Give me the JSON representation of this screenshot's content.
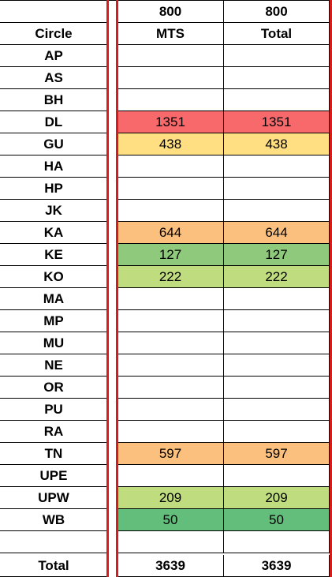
{
  "header": {
    "row1": {
      "label": "",
      "mts": "800",
      "total": "800"
    },
    "row2": {
      "label": "Circle",
      "mts": "MTS",
      "total": "Total"
    }
  },
  "colors": {
    "red": "#f8696b",
    "yellow": "#ffdf82",
    "orange": "#fbc07d",
    "light_green": "#bfdc7f",
    "green": "#8ec97c",
    "dark_green": "#63be7b",
    "border_red": "#d81b1b"
  },
  "rows": [
    {
      "circle": "AP",
      "mts": "",
      "total": "",
      "color": ""
    },
    {
      "circle": "AS",
      "mts": "",
      "total": "",
      "color": ""
    },
    {
      "circle": "BH",
      "mts": "",
      "total": "",
      "color": ""
    },
    {
      "circle": "DL",
      "mts": "1351",
      "total": "1351",
      "color": "#f8696b"
    },
    {
      "circle": "GU",
      "mts": "438",
      "total": "438",
      "color": "#ffdf82"
    },
    {
      "circle": "HA",
      "mts": "",
      "total": "",
      "color": ""
    },
    {
      "circle": "HP",
      "mts": "",
      "total": "",
      "color": ""
    },
    {
      "circle": "JK",
      "mts": "",
      "total": "",
      "color": ""
    },
    {
      "circle": "KA",
      "mts": "644",
      "total": "644",
      "color": "#fbc07d"
    },
    {
      "circle": "KE",
      "mts": "127",
      "total": "127",
      "color": "#8ec97c"
    },
    {
      "circle": "KO",
      "mts": "222",
      "total": "222",
      "color": "#bfdc7f"
    },
    {
      "circle": "MA",
      "mts": "",
      "total": "",
      "color": ""
    },
    {
      "circle": "MP",
      "mts": "",
      "total": "",
      "color": ""
    },
    {
      "circle": "MU",
      "mts": "",
      "total": "",
      "color": ""
    },
    {
      "circle": "NE",
      "mts": "",
      "total": "",
      "color": ""
    },
    {
      "circle": "OR",
      "mts": "",
      "total": "",
      "color": ""
    },
    {
      "circle": "PU",
      "mts": "",
      "total": "",
      "color": ""
    },
    {
      "circle": "RA",
      "mts": "",
      "total": "",
      "color": ""
    },
    {
      "circle": "TN",
      "mts": "597",
      "total": "597",
      "color": "#fbc07d"
    },
    {
      "circle": "UPE",
      "mts": "",
      "total": "",
      "color": ""
    },
    {
      "circle": "UPW",
      "mts": "209",
      "total": "209",
      "color": "#bfdc7f"
    },
    {
      "circle": "WB",
      "mts": "50",
      "total": "50",
      "color": "#63be7b"
    },
    {
      "circle": "",
      "mts": "",
      "total": "",
      "color": ""
    }
  ],
  "footer": {
    "label": "Total",
    "mts": "3639",
    "total": "3639"
  }
}
